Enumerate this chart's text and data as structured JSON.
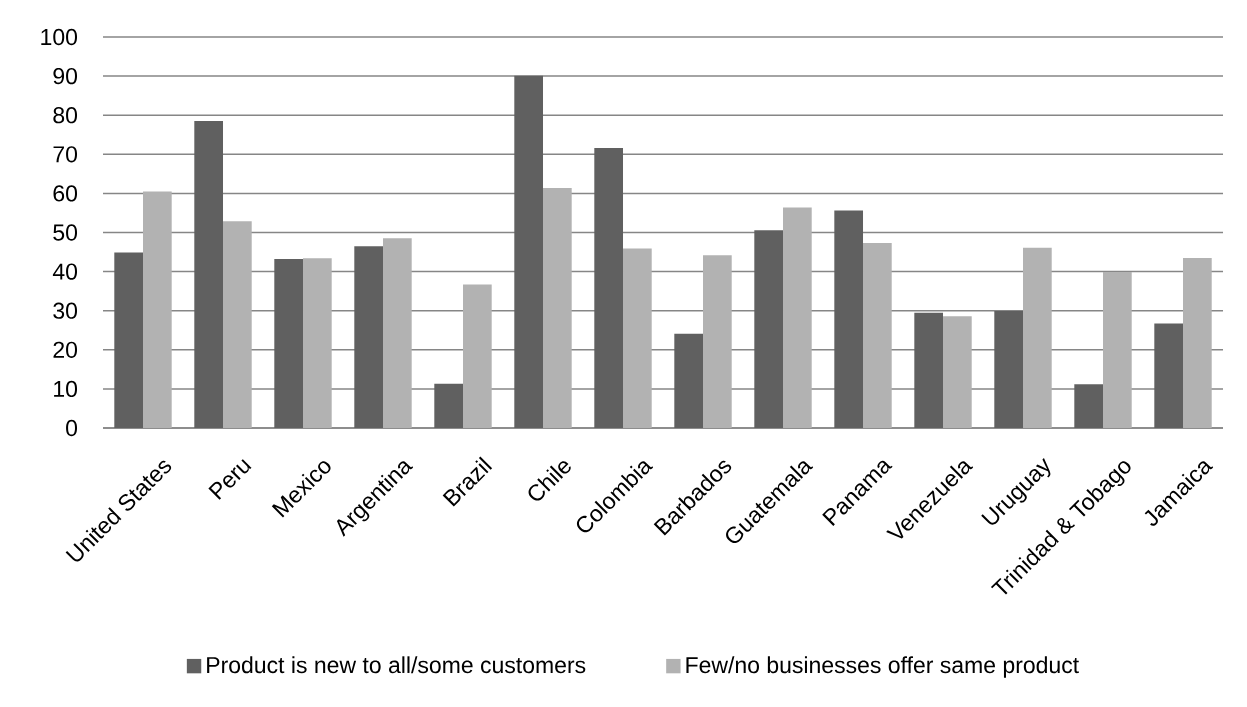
{
  "chart_data": {
    "type": "bar",
    "categories": [
      "United States",
      "Peru",
      "Mexico",
      "Argentina",
      "Brazil",
      "Chile",
      "Colombia",
      "Barbados",
      "Guatemala",
      "Panama",
      "Venezuela",
      "Uruguay",
      "Trinidad & Tobago",
      "Jamaica"
    ],
    "series": [
      {
        "name": "Product is new to all/some customers",
        "color": "#606060",
        "values": [
          44.9,
          78.5,
          43.2,
          46.5,
          11.3,
          90.1,
          71.6,
          24.1,
          50.6,
          55.6,
          29.5,
          29.9,
          11.2,
          26.7
        ]
      },
      {
        "name": "Few/no businesses offer same product",
        "color": "#b2b2b2",
        "values": [
          60.5,
          52.9,
          43.4,
          48.5,
          36.7,
          61.4,
          45.9,
          44.2,
          56.4,
          47.3,
          28.6,
          46.1,
          39.9,
          43.5
        ]
      }
    ],
    "ylim": [
      0,
      100
    ],
    "yticks": [
      0,
      10,
      20,
      30,
      40,
      50,
      60,
      70,
      80,
      90,
      100
    ],
    "grid": "y",
    "legend": "bottom"
  }
}
